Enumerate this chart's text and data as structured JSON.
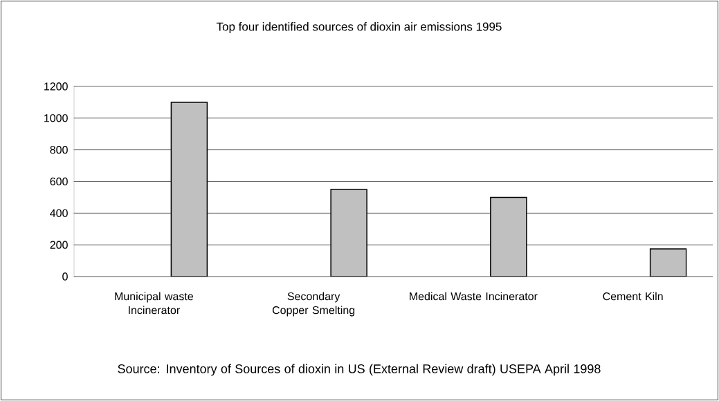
{
  "chart_data": {
    "type": "bar",
    "title": "Top four identified sources of dioxin air emissions 1995",
    "categories": [
      "Municipal waste Incinerator",
      "Secondary Copper Smelting",
      "Medical Waste Incinerator",
      "Cement Kiln"
    ],
    "values": [
      1100,
      550,
      500,
      175
    ],
    "color": "#c0c0c0",
    "ylim": [
      0,
      1200
    ],
    "yticks": [
      0,
      200,
      400,
      600,
      800,
      1000,
      1200
    ],
    "grid": "y",
    "annotations": [
      "Source: Inventory of Sources of dioxin in US (External Review draft) USEPA April 1998"
    ]
  }
}
